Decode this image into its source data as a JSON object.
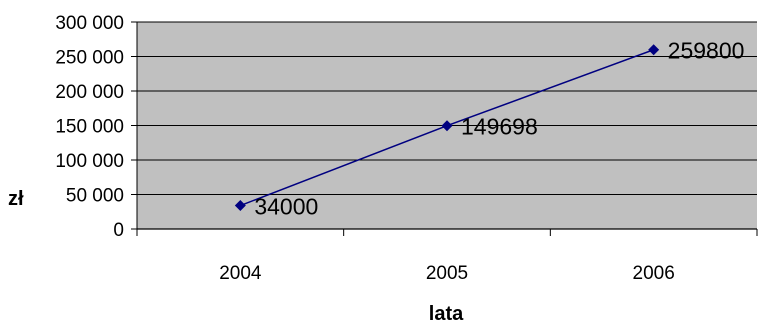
{
  "chart_data": {
    "type": "line",
    "title": "",
    "xlabel": "lata",
    "ylabel": "zł",
    "categories": [
      "2004",
      "2005",
      "2006"
    ],
    "series": [
      {
        "values": [
          34000,
          149698,
          259800
        ],
        "data_labels": [
          "34000",
          "149698",
          "259800"
        ],
        "color": "#000080"
      }
    ],
    "ylim": [
      0,
      300000
    ],
    "yticks": [
      0,
      50000,
      100000,
      150000,
      200000,
      250000,
      300000
    ],
    "ytick_labels": [
      "0",
      "50 000",
      "100 000",
      "150 000",
      "200 000",
      "250 000",
      "300 000"
    ],
    "grid": "horizontal",
    "legend": "none",
    "plot_background": "#c0c0c0",
    "gridline_color": "#000000"
  }
}
